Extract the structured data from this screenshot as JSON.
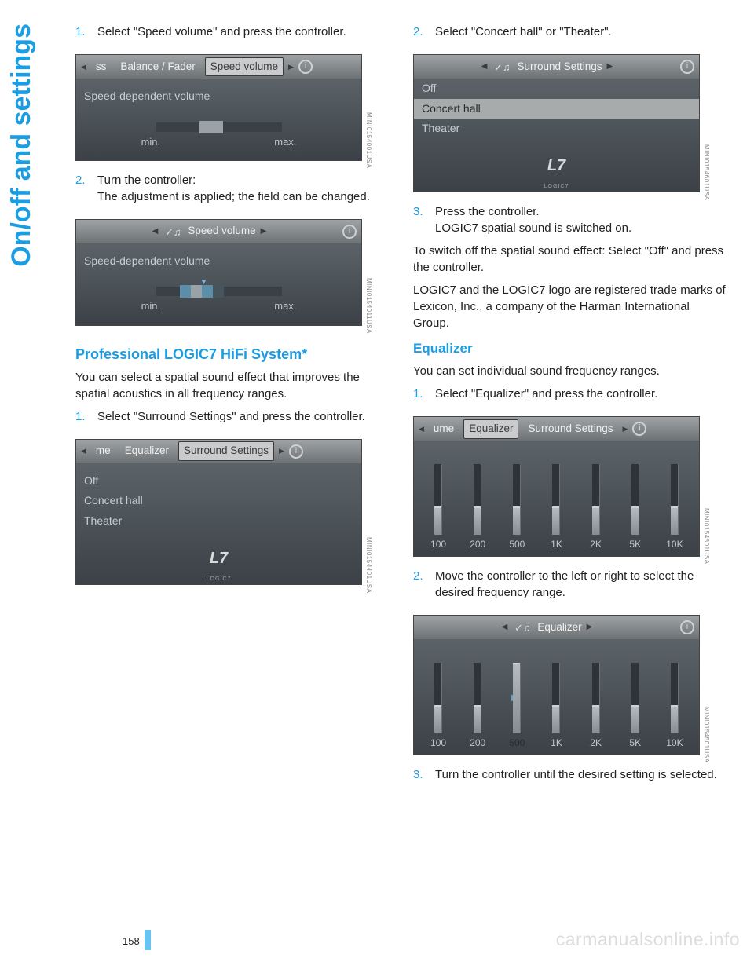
{
  "side_title": "On/off and settings",
  "page_number": "158",
  "watermark": "carmanualsonline.info",
  "accent_color": "#1b9de3",
  "left": {
    "step1": {
      "num": "1.",
      "text": "Select \"Speed volume\" and press the controller."
    },
    "shot1": {
      "tabs_left": "ss",
      "tab1": "Balance / Fader",
      "tab2": "Speed volume",
      "body_label": "Speed-dependent volume",
      "min": "min.",
      "max": "max.",
      "ref": "MINI0154001USA"
    },
    "step2": {
      "num": "2.",
      "text_a": "Turn the controller:",
      "text_b": "The adjustment is applied; the field can be changed."
    },
    "shot2": {
      "title": "Speed volume",
      "body_label": "Speed-dependent volume",
      "min": "min.",
      "max": "max.",
      "ref": "MINI0154011USA"
    },
    "heading": "Professional LOGIC7 HiFi System*",
    "para": "You can select a spatial sound effect that improves the spatial acoustics in all frequency ranges.",
    "step3": {
      "num": "1.",
      "text": "Select \"Surround Settings\" and press the controller."
    },
    "shot3": {
      "tabs_left": "me",
      "tab1": "Equalizer",
      "tab2": "Surround Settings",
      "row_off": "Off",
      "row_concert": "Concert hall",
      "row_theater": "Theater",
      "logic7": "L7",
      "logic7_sub": "LOGIC7",
      "ref": "MINI0154401USA"
    }
  },
  "right": {
    "step2": {
      "num": "2.",
      "text": "Select \"Concert hall\" or \"Theater\"."
    },
    "shot4": {
      "title": "Surround Settings",
      "row_off": "Off",
      "row_concert": "Concert hall",
      "row_theater": "Theater",
      "logic7": "L7",
      "logic7_sub": "LOGIC7",
      "ref": "MINI0154601USA"
    },
    "step3": {
      "num": "3.",
      "text_a": "Press the controller.",
      "text_b": "LOGIC7 spatial sound is switched on."
    },
    "para_off": "To switch off the spatial sound effect: Select \"Off\" and press the controller.",
    "para_trade": "LOGIC7 and the LOGIC7 logo are registered trade marks of Lexicon, Inc., a company of the Harman International Group.",
    "eq_heading": "Equalizer",
    "eq_para": "You can set individual sound frequency ranges.",
    "eq_step1": {
      "num": "1.",
      "text": "Select \"Equalizer\" and press the controller."
    },
    "shot5": {
      "tabs_left": "ume",
      "tab1": "Equalizer",
      "tab2": "Surround Settings",
      "freqs": [
        "100",
        "200",
        "500",
        "1K",
        "2K",
        "5K",
        "10K"
      ],
      "heights": [
        36,
        36,
        36,
        36,
        36,
        36,
        36
      ],
      "ref": "MINI0154801USA"
    },
    "eq_step2": {
      "num": "2.",
      "text": "Move the controller to the left or right to select the desired frequency range."
    },
    "shot6": {
      "title": "Equalizer",
      "freqs": [
        "100",
        "200",
        "500",
        "1K",
        "2K",
        "5K",
        "10K"
      ],
      "heights": [
        36,
        36,
        90,
        36,
        36,
        36,
        36
      ],
      "selected_index": 2,
      "ref": "MINI0154501USA"
    },
    "eq_step3": {
      "num": "3.",
      "text": "Turn the controller until the desired setting is selected."
    }
  }
}
